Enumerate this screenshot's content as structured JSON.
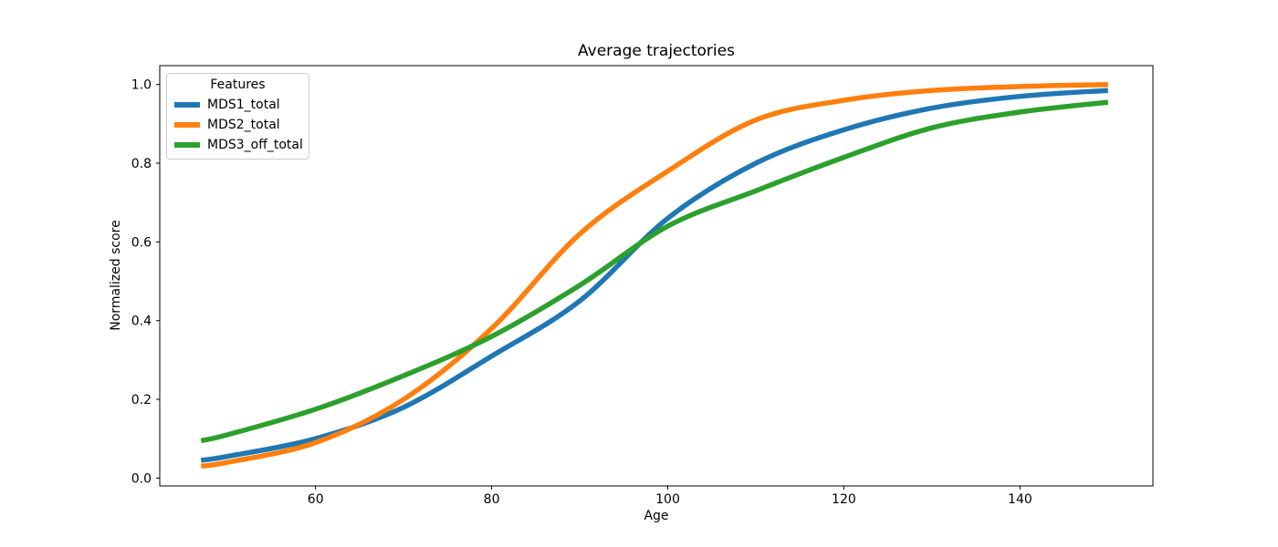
{
  "chart_data": {
    "type": "line",
    "title": "Average trajectories",
    "xlabel": "Age",
    "ylabel": "Normalized score",
    "legend_title": "Features",
    "legend_position": "upper left",
    "grid": false,
    "background_color": "#ffffff",
    "x": [
      47,
      50,
      60,
      70,
      80,
      90,
      100,
      110,
      120,
      130,
      140,
      150
    ],
    "series": [
      {
        "name": "MDS1_total",
        "color": "#1f77b4",
        "values": [
          0.045,
          0.055,
          0.1,
          0.18,
          0.31,
          0.45,
          0.66,
          0.8,
          0.885,
          0.94,
          0.97,
          0.985
        ]
      },
      {
        "name": "MDS2_total",
        "color": "#ff7f0e",
        "values": [
          0.03,
          0.04,
          0.09,
          0.2,
          0.38,
          0.62,
          0.78,
          0.91,
          0.96,
          0.985,
          0.995,
          1.0
        ]
      },
      {
        "name": "MDS3_off_total",
        "color": "#2ca02c",
        "values": [
          0.095,
          0.11,
          0.175,
          0.26,
          0.36,
          0.49,
          0.64,
          0.73,
          0.815,
          0.89,
          0.93,
          0.955
        ]
      }
    ],
    "xticks": [
      60,
      80,
      100,
      120,
      140
    ],
    "xtick_labels": [
      "60",
      "80",
      "100",
      "120",
      "140"
    ],
    "yticks": [
      0.0,
      0.2,
      0.4,
      0.6,
      0.8,
      1.0
    ],
    "ytick_labels": [
      "0.0",
      "0.2",
      "0.4",
      "0.6",
      "0.8",
      "1.0"
    ],
    "xlim": [
      42.3,
      155.1
    ],
    "ylim": [
      -0.02,
      1.048
    ],
    "line_width": 5.5
  }
}
